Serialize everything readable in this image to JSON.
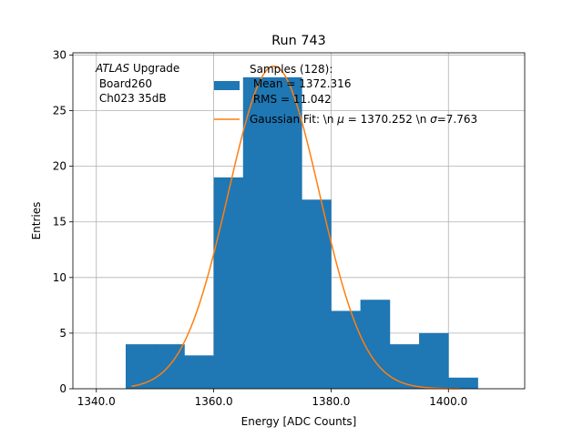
{
  "chart_data": {
    "type": "bar",
    "title": "Run 743",
    "xlabel": "Energy [ADC Counts]",
    "ylabel": "Entries",
    "xlim": [
      1336,
      1413
    ],
    "ylim": [
      0,
      30.2
    ],
    "xticks": [
      1340,
      1360,
      1380,
      1400
    ],
    "xtick_labels": [
      "1340.0",
      "1360.0",
      "1380.0",
      "1400.0"
    ],
    "yticks": [
      0,
      5,
      10,
      15,
      20,
      25,
      30
    ],
    "ytick_labels": [
      "0",
      "5",
      "10",
      "15",
      "20",
      "25",
      "30"
    ],
    "grid": true,
    "histogram": {
      "name": "Samples (128):\n Mean = 1372.316\n RMS = 11.042",
      "color": "#1f77b4",
      "bins": [
        {
          "x0": 1345,
          "x1": 1350,
          "count": 4
        },
        {
          "x0": 1350,
          "x1": 1355,
          "count": 4
        },
        {
          "x0": 1355,
          "x1": 1360,
          "count": 3
        },
        {
          "x0": 1360,
          "x1": 1365,
          "count": 19
        },
        {
          "x0": 1365,
          "x1": 1370,
          "count": 28
        },
        {
          "x0": 1370,
          "x1": 1375,
          "count": 28
        },
        {
          "x0": 1375,
          "x1": 1380,
          "count": 17
        },
        {
          "x0": 1380,
          "x1": 1385,
          "count": 7
        },
        {
          "x0": 1385,
          "x1": 1390,
          "count": 8
        },
        {
          "x0": 1390,
          "x1": 1395,
          "count": 4
        },
        {
          "x0": 1395,
          "x1": 1400,
          "count": 5
        },
        {
          "x0": 1400,
          "x1": 1405,
          "count": 1
        }
      ]
    },
    "fit": {
      "name": "Gaussian Fit: \\n μ = 1370.252 \\n σ=7.763",
      "color": "#ff7f0e",
      "mu": 1370.252,
      "sigma": 7.763,
      "amplitude": 29,
      "x_range": [
        1346,
        1402
      ]
    },
    "annotation": {
      "italic": "ATLAS",
      "rest": " Upgrade",
      "line2": " Board260",
      "line3": " Ch023 35dB"
    },
    "legend": {
      "loc": "top-center",
      "samples_lines": [
        "Samples (128):",
        " Mean = 1372.316",
        " RMS = 11.042"
      ],
      "fit_prefix": "Gaussian Fit: \\n ",
      "fit_mu_symbol": "μ",
      "fit_mid": " = 1370.252 \\n ",
      "fit_sigma_symbol": "σ",
      "fit_suffix": "=7.763"
    }
  }
}
